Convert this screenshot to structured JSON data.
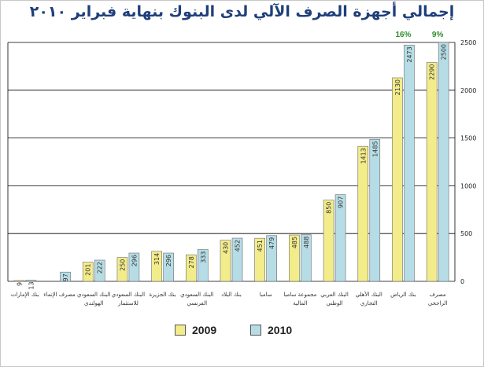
{
  "chart_data": {
    "type": "bar",
    "title": "إجمالي أجهزة الصرف الآلي لدى البنوك بنهاية فبراير ٢٠١٠",
    "categories": [
      "بنك الإمارات",
      "مصرف الإنماء",
      "البنك السعودي الهولندي",
      "البنك السعودي للاستثمار",
      "بنك الجزيرة",
      "البنك السعودي الفرنسي",
      "بنك البلاد",
      "سامبا",
      "مجموعة سامبا المالية",
      "البنك العربي الوطني",
      "البنك الأهلي التجاري",
      "بنك الرياض",
      "مصرف الراجحي"
    ],
    "series": [
      {
        "name": "2009",
        "color": "#f3ec8a",
        "values": [
          9,
          0,
          201,
          250,
          314,
          278,
          430,
          451,
          485,
          850,
          1413,
          2130,
          2290
        ]
      },
      {
        "name": "2010",
        "color": "#b6dde6",
        "values": [
          13,
          97,
          222,
          296,
          296,
          333,
          452,
          479,
          488,
          907,
          1485,
          2473,
          2500
        ]
      }
    ],
    "ylim": [
      0,
      2500
    ],
    "yticks": [
      0,
      500,
      1000,
      1500,
      2000,
      2500
    ],
    "y_axis_position": "right",
    "grid": true,
    "legend": "bottom",
    "annotations": [
      {
        "category_index": 11,
        "text": "16%",
        "color": "#2e8b2e"
      },
      {
        "category_index": 12,
        "text": "9%",
        "color": "#2e8b2e"
      }
    ]
  },
  "legend": {
    "items": [
      {
        "label": "2009"
      },
      {
        "label": "2010"
      }
    ]
  }
}
